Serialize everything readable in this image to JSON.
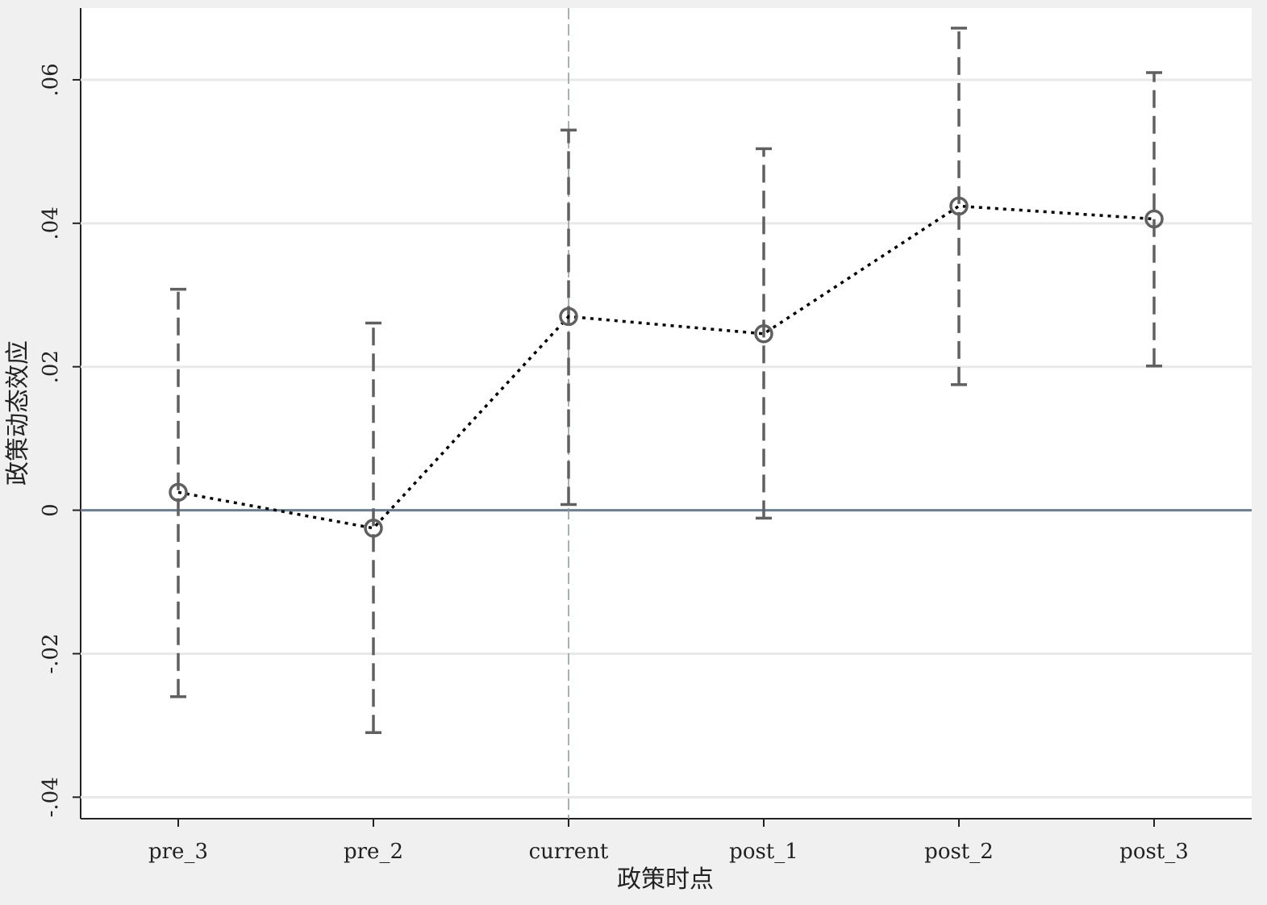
{
  "chart_data": {
    "type": "errorbar",
    "x_label": "政策时点",
    "y_label": "政策动态效应",
    "categories": [
      "pre_3",
      "pre_2",
      "current",
      "post_1",
      "post_2",
      "post_3"
    ],
    "values": [
      0.0025,
      -0.0025,
      0.027,
      0.0246,
      0.0424,
      0.0406
    ],
    "lower": [
      -0.026,
      -0.031,
      0.0008,
      -0.0011,
      0.0175,
      0.0201
    ],
    "upper": [
      0.0308,
      0.0261,
      0.053,
      0.0504,
      0.0672,
      0.061
    ],
    "ylim": [
      -0.043,
      0.07
    ],
    "yticks": [
      {
        "value": -0.04,
        "label": "-.04"
      },
      {
        "value": -0.02,
        "label": "-.02"
      },
      0,
      {
        "value": 0.02,
        "label": ".02"
      },
      {
        "value": 0.04,
        "label": ".04"
      },
      {
        "value": 0.06,
        "label": ".06"
      }
    ],
    "grid": true,
    "reference_y": 0,
    "reference_x": "current",
    "line_color": "#000000",
    "marker_color": "#606060",
    "ci_color": "#606060",
    "reference_color": "#6a7f93"
  }
}
